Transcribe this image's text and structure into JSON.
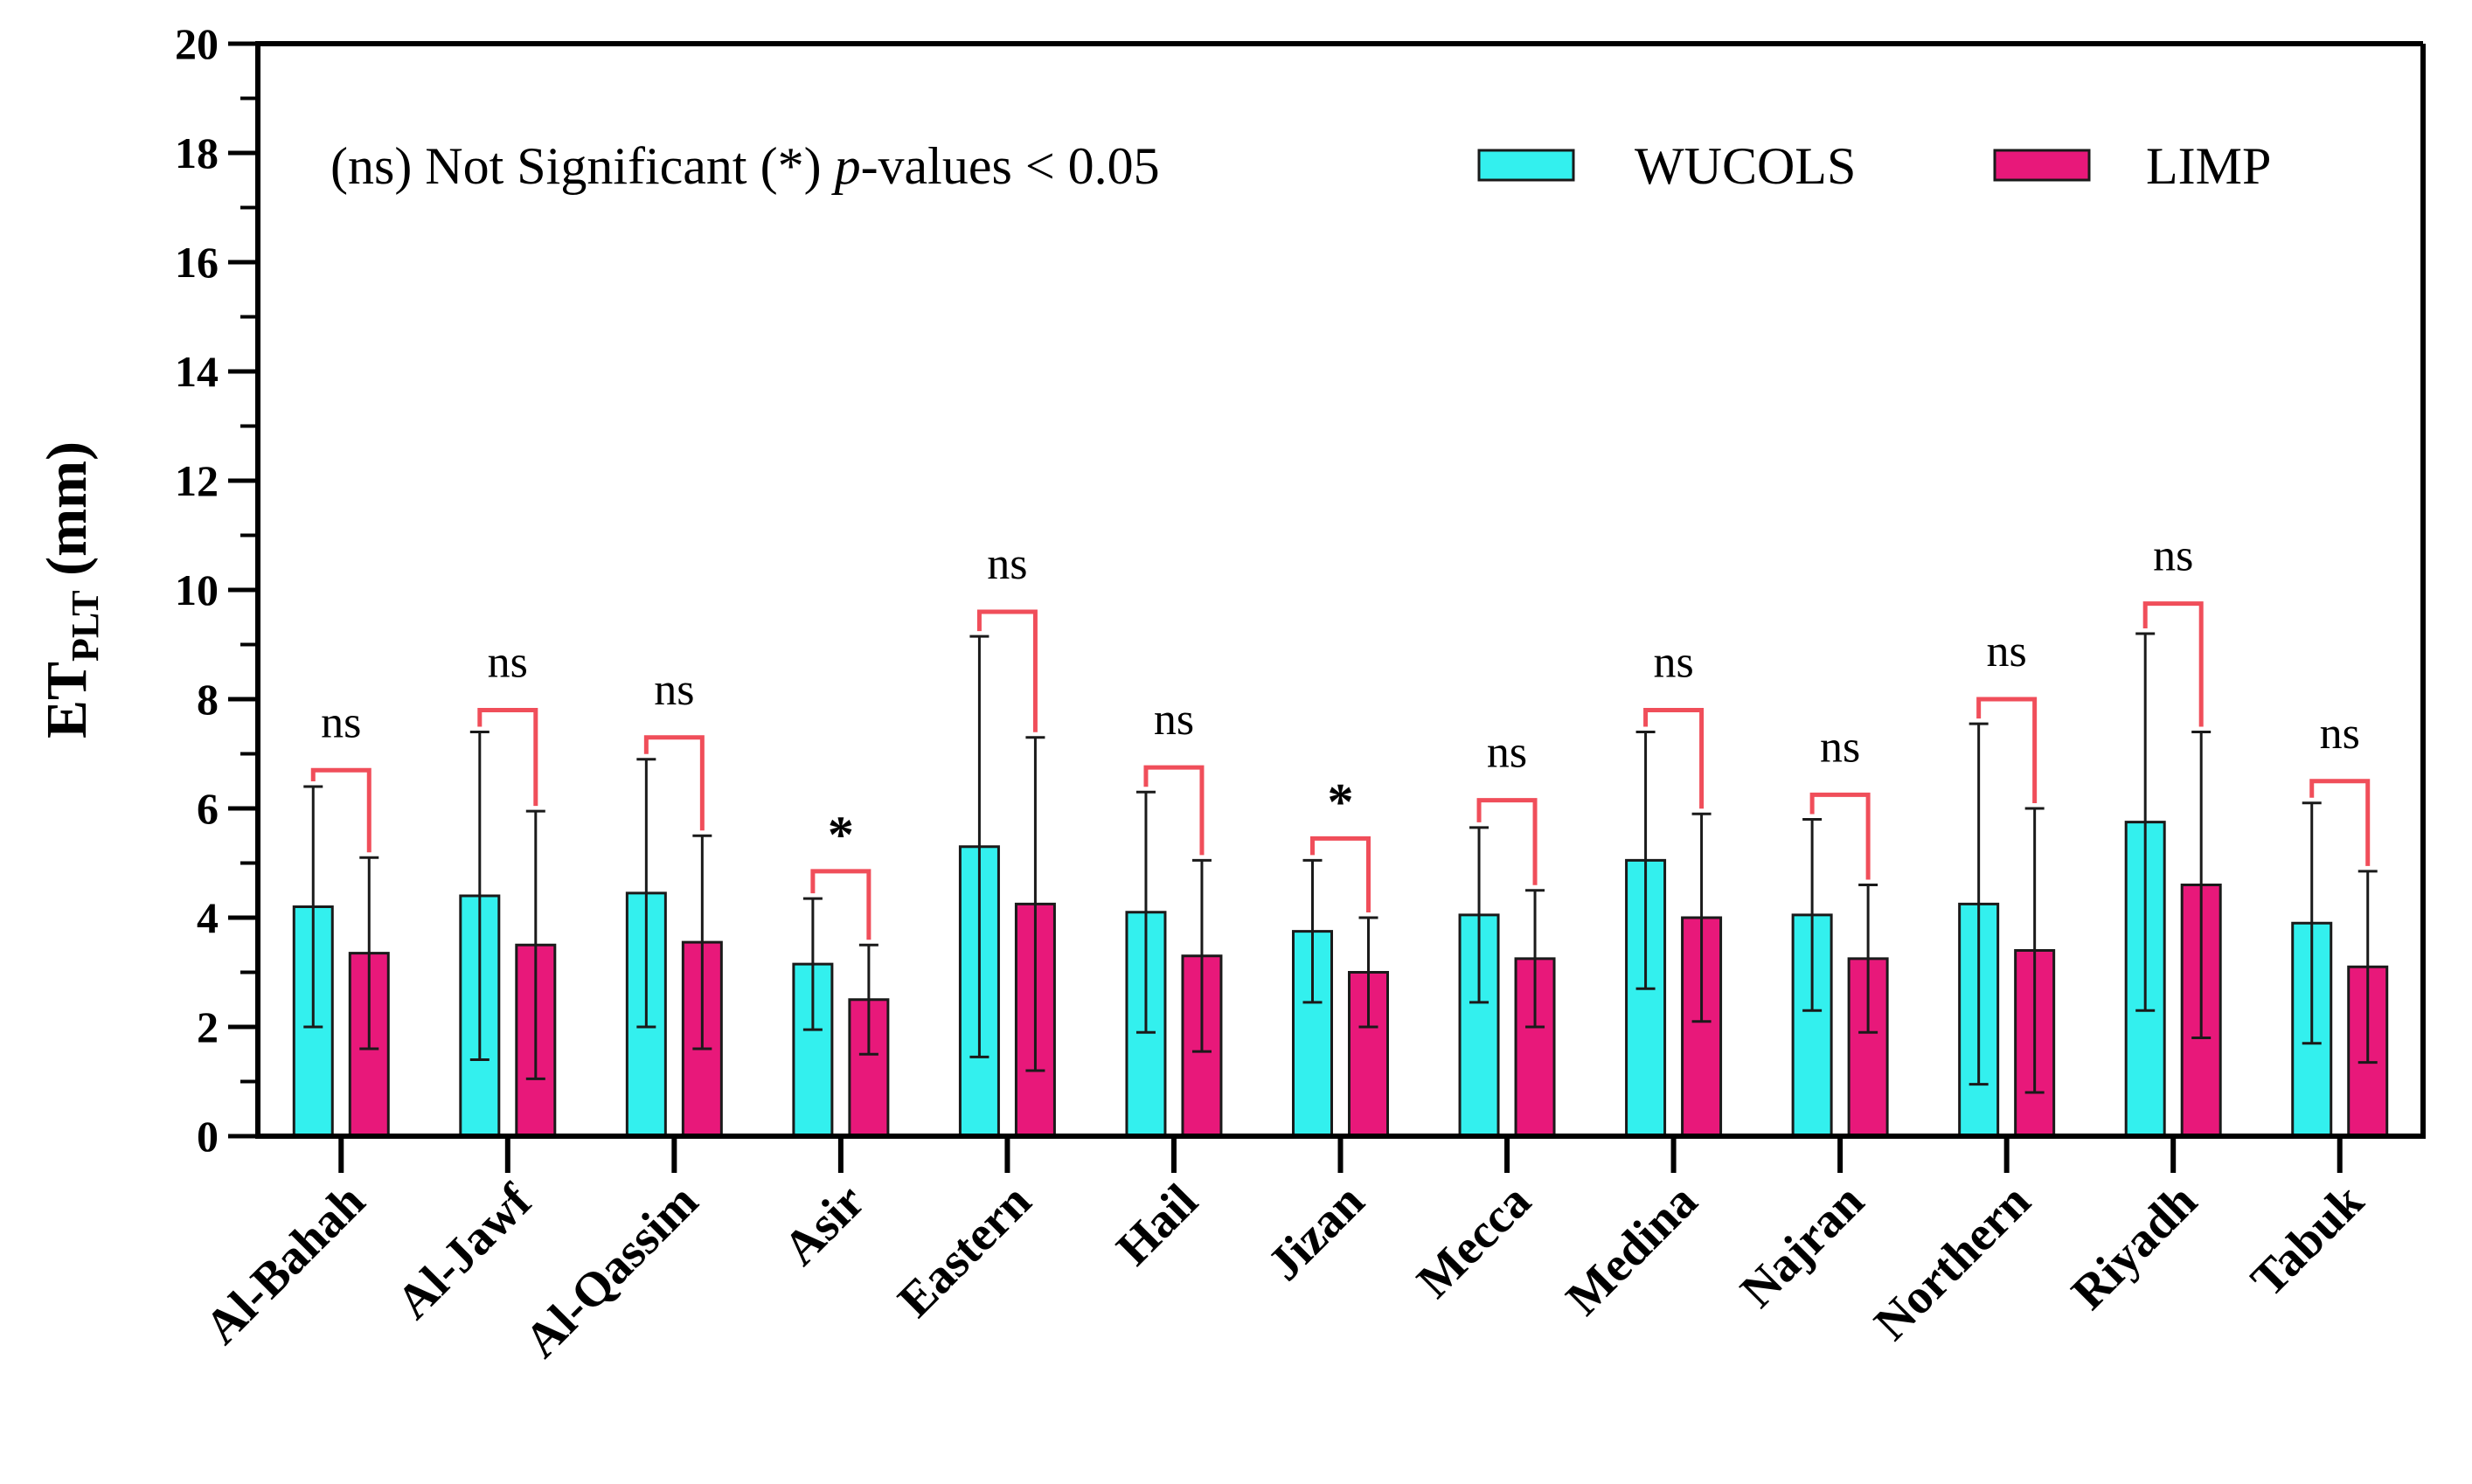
{
  "chart_data": {
    "type": "bar",
    "title": "",
    "xlabel": "",
    "ylabel": {
      "main": "ET",
      "subscript": "PLT",
      "unit": " (mm)"
    },
    "ylim": [
      0,
      20
    ],
    "yticks": [
      0,
      2,
      4,
      6,
      8,
      10,
      12,
      14,
      16,
      18,
      20
    ],
    "categories": [
      "Al-Bahah",
      "Al-Jawf",
      "Al-Qassim",
      "Asir",
      "Eastern",
      "Hail",
      "Jizan",
      "Mecca",
      "Medina",
      "Najran",
      "Northern",
      "Riyadh",
      "Tabuk"
    ],
    "series": [
      {
        "name": "WUCOLS",
        "color": "#33F0EE",
        "values": [
          4.2,
          4.4,
          4.45,
          3.15,
          5.3,
          4.1,
          3.75,
          4.05,
          5.05,
          4.05,
          4.25,
          5.75,
          3.9
        ],
        "errors": [
          2.2,
          3.0,
          2.45,
          1.2,
          3.85,
          2.2,
          1.3,
          1.6,
          2.35,
          1.75,
          3.3,
          3.45,
          2.2
        ]
      },
      {
        "name": "LIMP",
        "color": "#E8187A",
        "values": [
          3.35,
          3.5,
          3.55,
          2.5,
          4.25,
          3.3,
          3.0,
          3.25,
          4.0,
          3.25,
          3.4,
          4.6,
          3.1
        ],
        "errors": [
          1.75,
          2.45,
          1.95,
          1.0,
          3.05,
          1.75,
          1.0,
          1.25,
          1.9,
          1.35,
          2.6,
          2.8,
          1.75
        ]
      }
    ],
    "significance": [
      {
        "label": "ns",
        "bracket_top": 6.7
      },
      {
        "label": "ns",
        "bracket_top": 7.8
      },
      {
        "label": "ns",
        "bracket_top": 7.3
      },
      {
        "label": "*",
        "bracket_top": 4.85
      },
      {
        "label": "ns",
        "bracket_top": 9.6
      },
      {
        "label": "ns",
        "bracket_top": 6.75
      },
      {
        "label": "*",
        "bracket_top": 5.45
      },
      {
        "label": "ns",
        "bracket_top": 6.15
      },
      {
        "label": "ns",
        "bracket_top": 7.8
      },
      {
        "label": "ns",
        "bracket_top": 6.25
      },
      {
        "label": "ns",
        "bracket_top": 8.0
      },
      {
        "label": "ns",
        "bracket_top": 9.75
      },
      {
        "label": "ns",
        "bracket_top": 6.5
      }
    ],
    "legend": {
      "note_part1": "(ns) Not Significant  (*) ",
      "note_italic": "p",
      "note_part2": "-values < 0.05",
      "position": "top"
    },
    "bracket_color": "#F04E5A"
  }
}
